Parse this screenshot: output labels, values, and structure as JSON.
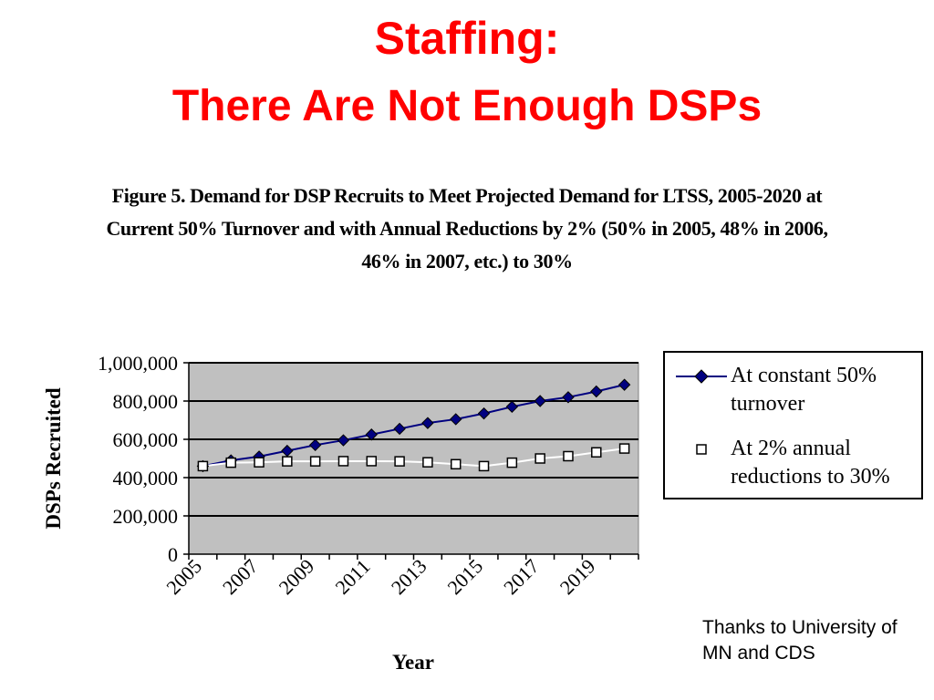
{
  "slide": {
    "title": "Staffing:",
    "subtitle": "There Are Not Enough DSPs",
    "figure_caption": "Figure 5. Demand for DSP Recruits to Meet Projected Demand for LTSS, 2005-2020 at Current 50%  Turnover and with Annual Reductions by 2%   (50%  in 2005, 48%  in 2006, 46%  in 2007, etc.) to 30%",
    "credit": "Thanks to University of MN and CDS"
  },
  "chart_data": {
    "type": "line",
    "xlabel": "Year",
    "ylabel": "DSPs Recruited",
    "x": [
      2005,
      2006,
      2007,
      2008,
      2009,
      2010,
      2011,
      2012,
      2013,
      2014,
      2015,
      2016,
      2017,
      2018,
      2019,
      2020
    ],
    "x_tick_labels": [
      "2005",
      "2007",
      "2009",
      "2011",
      "2013",
      "2015",
      "2017",
      "2019"
    ],
    "ylim": [
      0,
      1000000
    ],
    "y_tick_values": [
      0,
      200000,
      400000,
      600000,
      800000,
      1000000
    ],
    "y_tick_labels": [
      "0",
      "200,000",
      "400,000",
      "600,000",
      "800,000",
      "1,000,000"
    ],
    "grid": "horizontal",
    "plot_background": "#c0c0c0",
    "legend_position": "right",
    "series": [
      {
        "name": "At constant 50% turnover",
        "color": "#000080",
        "marker": "filled-diamond",
        "values": [
          460000,
          490000,
          510000,
          540000,
          570000,
          595000,
          625000,
          655000,
          685000,
          705000,
          735000,
          770000,
          800000,
          820000,
          850000,
          885000
        ]
      },
      {
        "name": "At 2% annual reductions to 30%",
        "color": "#ffffff",
        "marker": "hollow-square",
        "values": [
          460000,
          478000,
          480000,
          485000,
          485000,
          486000,
          486000,
          485000,
          480000,
          470000,
          460000,
          478000,
          500000,
          512000,
          532000,
          552000
        ]
      }
    ]
  }
}
